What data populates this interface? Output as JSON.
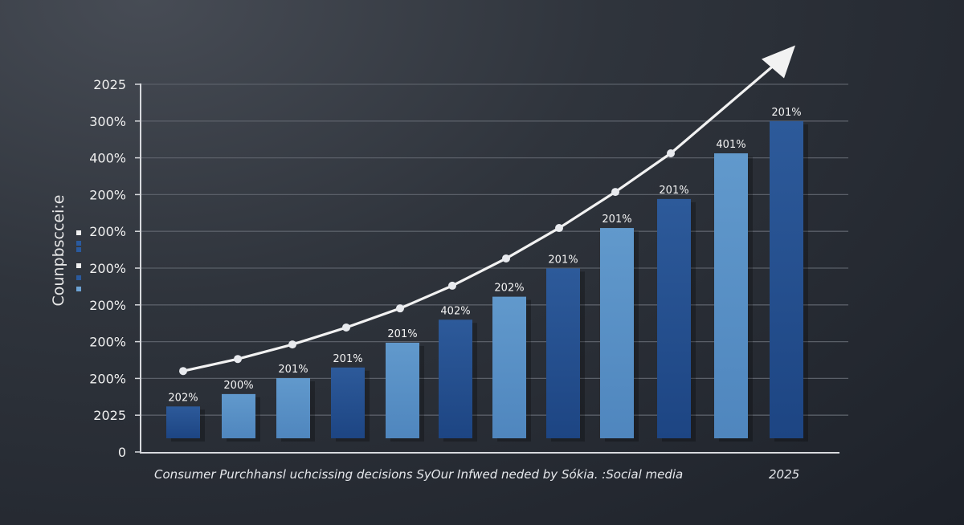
{
  "chart_data": {
    "type": "bar",
    "title": "",
    "xlabel": "Consumer Purchhansl uchcissing decisions SyOur  Infwed neded by Sókia. :Social media",
    "xlabel_end": "2025",
    "ylabel": "Counpbsccei:e",
    "y_tick_labels": [
      "0",
      "2025",
      "200%",
      "200%",
      "200%",
      "200%",
      "200%",
      "200%",
      "400%",
      "300%",
      "2025"
    ],
    "grid": true,
    "bar_labels": [
      "202%",
      "200%",
      "201%",
      "201%",
      "201%",
      "402%",
      "202%",
      "201%",
      "201%",
      "201%",
      "401%",
      "201%"
    ],
    "bar_levels_percent_of_axis": [
      9,
      12.5,
      17,
      20,
      27,
      33.5,
      40,
      48,
      59.4,
      67.6,
      80.5,
      89.6
    ],
    "bar_shades": [
      "dark",
      "light",
      "light",
      "dark",
      "light",
      "dark",
      "light",
      "dark",
      "light",
      "dark",
      "light",
      "dark"
    ],
    "trend_line_levels_percent_of_axis": [
      19,
      22.4,
      26.5,
      31.3,
      36.7,
      43.1,
      50.8,
      59.4,
      69.6,
      80.5
    ],
    "trend_arrow_tip_level_percent_of_axis": 111,
    "legend_markers": [
      "white",
      "blue",
      "blue",
      "white",
      "blue",
      "light-blue"
    ],
    "legend_placement": "left"
  },
  "colors": {
    "bar_dark": "#24508f",
    "bar_light": "#5b93c8",
    "trend_line": "#f2f2f2",
    "grid": "#5a5f68",
    "axis": "#d8dade"
  }
}
